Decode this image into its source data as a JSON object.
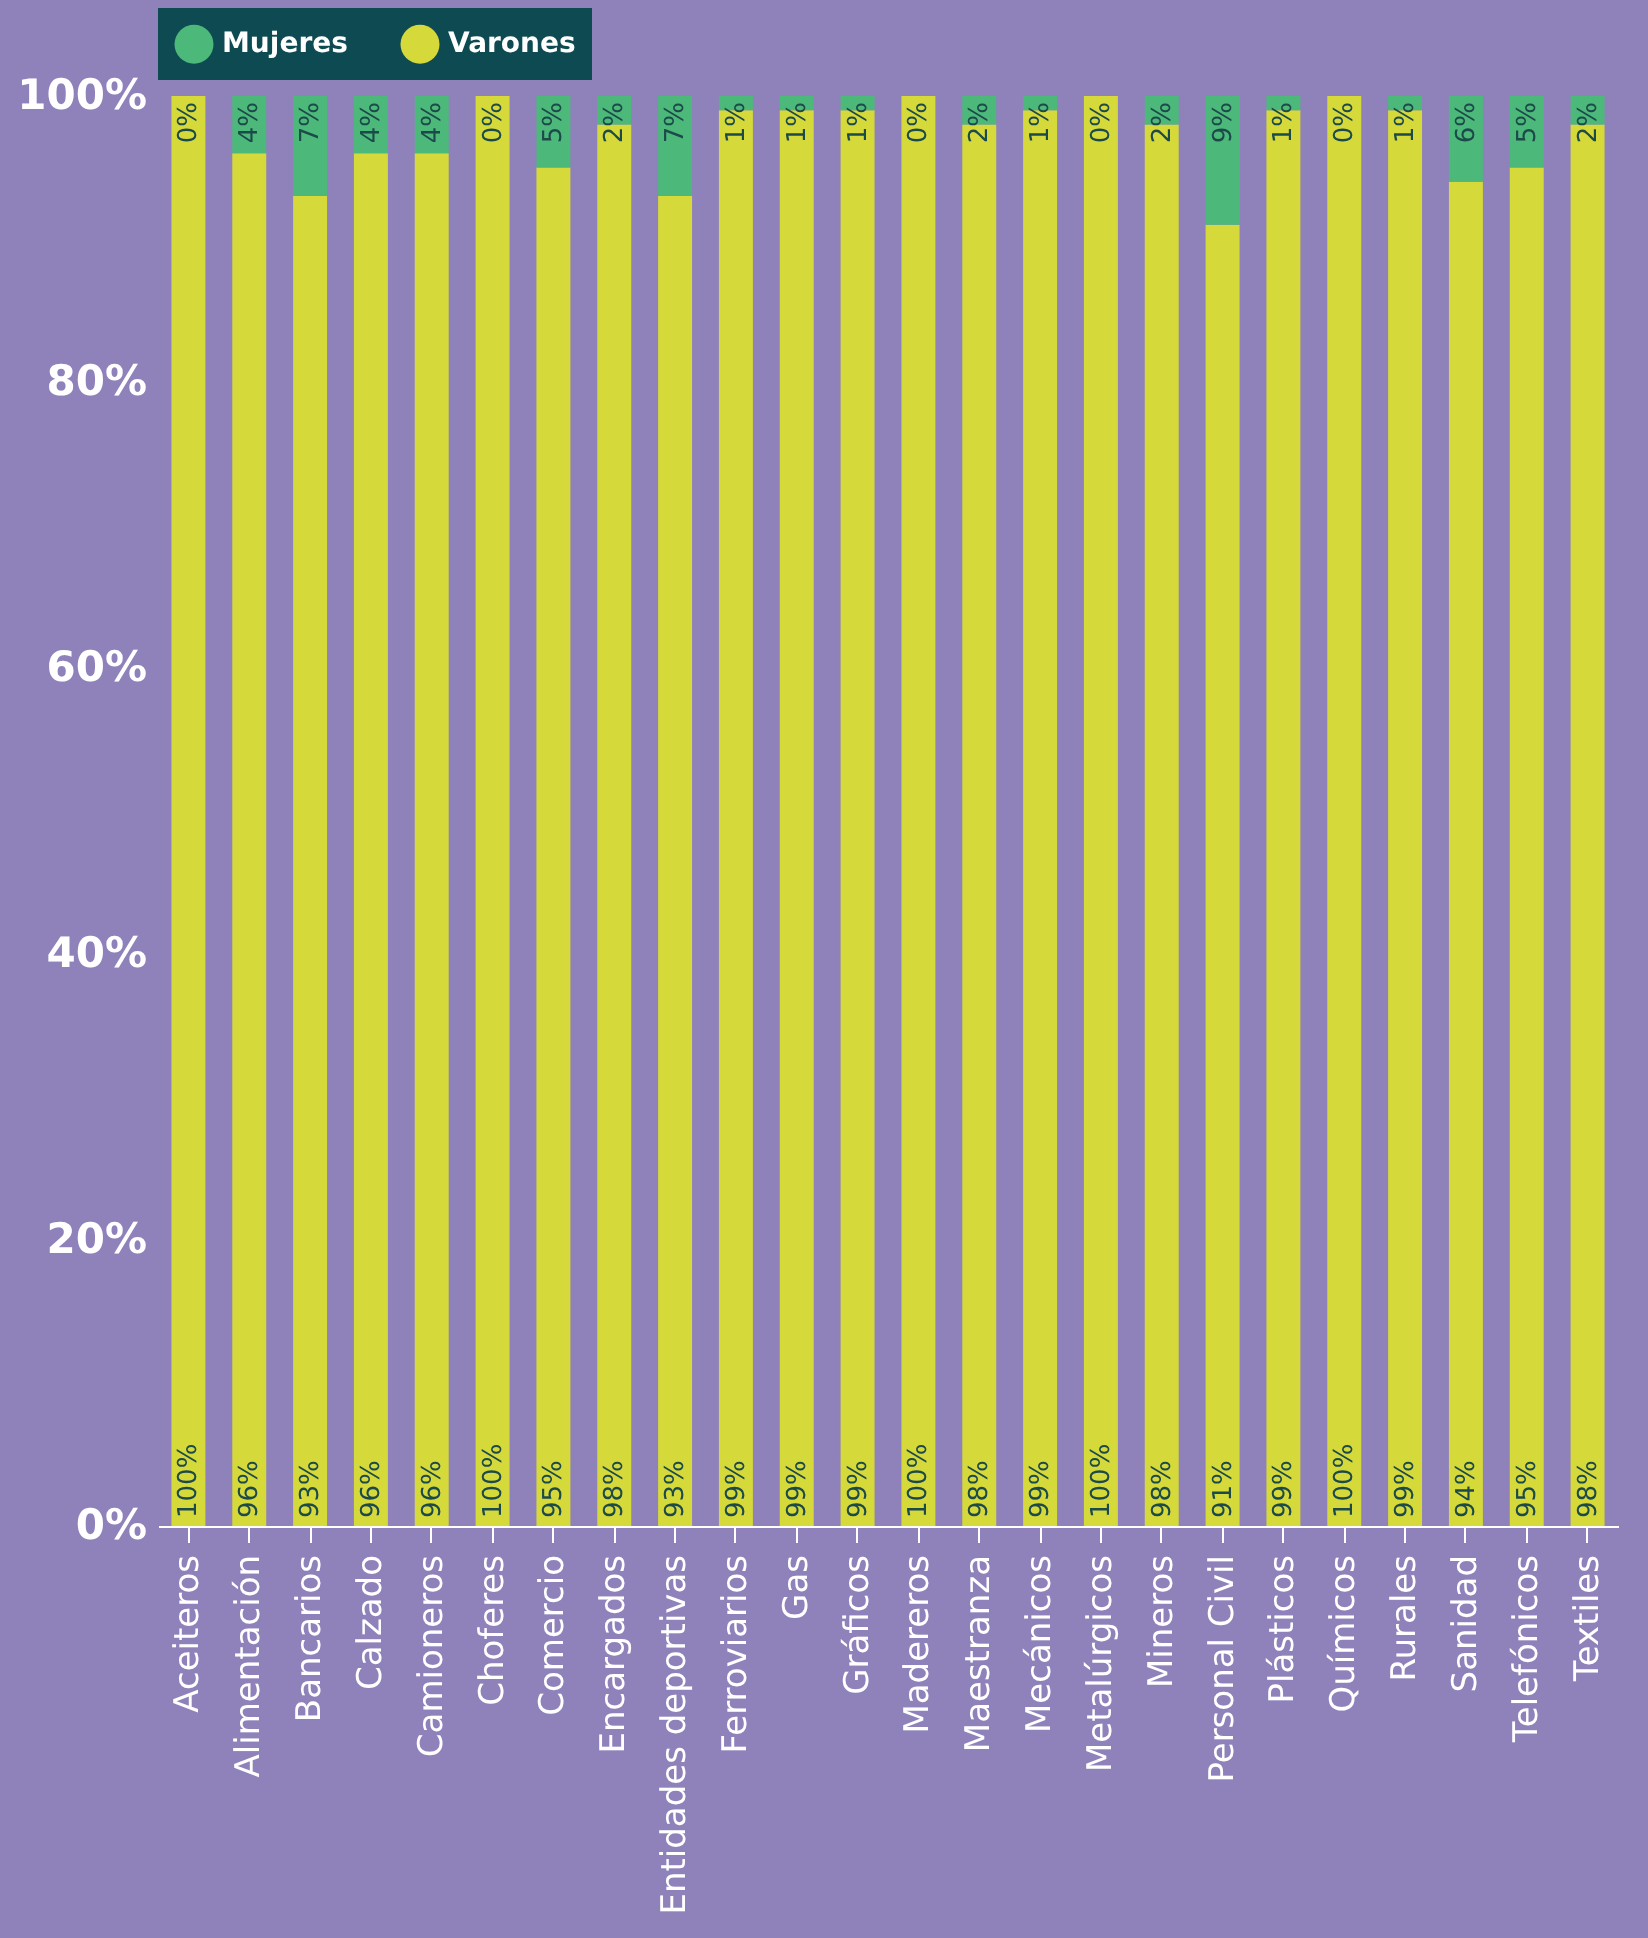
{
  "chart_data": {
    "type": "bar",
    "stacked": true,
    "legend": "top",
    "categories": [
      "Aceiteros",
      "Alimentación",
      "Bancarios",
      "Calzado",
      "Camioneros",
      "Choferes",
      "Comercio",
      "Encargados",
      "Entidades deportivas",
      "Ferroviarios",
      "Gas",
      "Gráficos",
      "Madereros",
      "Maestranza",
      "Mecánicos",
      "Metalúrgicos",
      "Mineros",
      "Personal Civil",
      "Plásticos",
      "Químicos",
      "Rurales",
      "Sanidad",
      "Telefónicos",
      "Textiles"
    ],
    "series": [
      {
        "name": "Varones",
        "color": "#d6d93a",
        "values": [
          100,
          96,
          93,
          96,
          96,
          100,
          95,
          98,
          93,
          99,
          99,
          99,
          100,
          98,
          99,
          100,
          98,
          91,
          99,
          100,
          99,
          94,
          95,
          98
        ],
        "value_labels": [
          "100%",
          "96%",
          "93%",
          "96%",
          "96%",
          "100%",
          "95%",
          "98%",
          "93%",
          "99%",
          "99%",
          "99%",
          "100%",
          "98%",
          "99%",
          "100%",
          "98%",
          "91%",
          "99%",
          "100%",
          "99%",
          "94%",
          "95%",
          "98%"
        ]
      },
      {
        "name": "Mujeres",
        "color": "#4cb87a",
        "values": [
          0,
          4,
          7,
          4,
          4,
          0,
          5,
          2,
          7,
          1,
          1,
          1,
          0,
          2,
          1,
          0,
          2,
          9,
          1,
          0,
          1,
          6,
          5,
          2
        ],
        "value_labels": [
          "0%",
          "4%",
          "7%",
          "4%",
          "4%",
          "0%",
          "5%",
          "2%",
          "7%",
          "1%",
          "1%",
          "1%",
          "0%",
          "2%",
          "1%",
          "0%",
          "2%",
          "9%",
          "1%",
          "0%",
          "1%",
          "6%",
          "5%",
          "2%"
        ]
      }
    ],
    "ylim": [
      0,
      100
    ],
    "yticks": [
      {
        "value": 0,
        "label": "0%"
      },
      {
        "value": 20,
        "label": "20%"
      },
      {
        "value": 40,
        "label": "40%"
      },
      {
        "value": 60,
        "label": "60%"
      },
      {
        "value": 80,
        "label": "80%"
      },
      {
        "value": 100,
        "label": "100%"
      }
    ],
    "grid": false
  }
}
